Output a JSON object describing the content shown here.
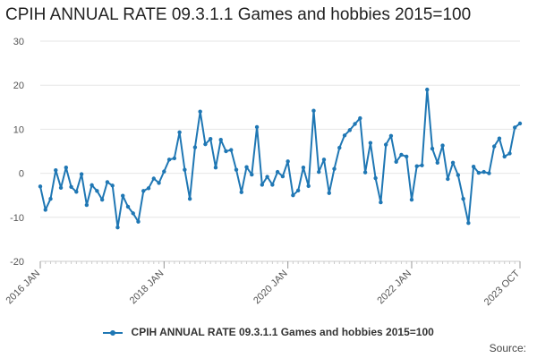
{
  "chart_data": {
    "type": "line",
    "title": "CPIH ANNUAL RATE 09.3.1.1 Games and hobbies 2015=100",
    "xlabel": "",
    "ylabel": "",
    "ylim": [
      -20,
      30
    ],
    "yticks": [
      -20,
      -10,
      0,
      10,
      20,
      30
    ],
    "xticks": [
      "2016 JAN",
      "2018 JAN",
      "2020 JAN",
      "2022 JAN",
      "2023 OCT"
    ],
    "grid": true,
    "legend_position": "bottom",
    "series": [
      {
        "name": "CPIH ANNUAL RATE 09.3.1.1 Games and hobbies 2015=100",
        "color": "#1f77b4",
        "x": [
          "2016 JAN",
          "2016 FEB",
          "2016 MAR",
          "2016 APR",
          "2016 MAY",
          "2016 JUN",
          "2016 JUL",
          "2016 AUG",
          "2016 SEP",
          "2016 OCT",
          "2016 NOV",
          "2016 DEC",
          "2017 JAN",
          "2017 FEB",
          "2017 MAR",
          "2017 APR",
          "2017 MAY",
          "2017 JUN",
          "2017 JUL",
          "2017 AUG",
          "2017 SEP",
          "2017 OCT",
          "2017 NOV",
          "2017 DEC",
          "2018 JAN",
          "2018 FEB",
          "2018 MAR",
          "2018 APR",
          "2018 MAY",
          "2018 JUN",
          "2018 JUL",
          "2018 AUG",
          "2018 SEP",
          "2018 OCT",
          "2018 NOV",
          "2018 DEC",
          "2019 JAN",
          "2019 FEB",
          "2019 MAR",
          "2019 APR",
          "2019 MAY",
          "2019 JUN",
          "2019 JUL",
          "2019 AUG",
          "2019 SEP",
          "2019 OCT",
          "2019 NOV",
          "2019 DEC",
          "2020 JAN",
          "2020 FEB",
          "2020 MAR",
          "2020 APR",
          "2020 MAY",
          "2020 JUN",
          "2020 JUL",
          "2020 AUG",
          "2020 SEP",
          "2020 OCT",
          "2020 NOV",
          "2020 DEC",
          "2021 JAN",
          "2021 FEB",
          "2021 MAR",
          "2021 APR",
          "2021 MAY",
          "2021 JUN",
          "2021 JUL",
          "2021 AUG",
          "2021 SEP",
          "2021 OCT",
          "2021 NOV",
          "2021 DEC",
          "2022 JAN",
          "2022 FEB",
          "2022 MAR",
          "2022 APR",
          "2022 MAY",
          "2022 JUN",
          "2022 JUL",
          "2022 AUG",
          "2022 SEP",
          "2022 OCT",
          "2022 NOV",
          "2022 DEC",
          "2023 JAN",
          "2023 FEB",
          "2023 MAR",
          "2023 APR",
          "2023 MAY",
          "2023 JUN",
          "2023 JUL",
          "2023 AUG",
          "2023 SEP",
          "2023 OCT"
        ],
        "values": [
          -3,
          -8.3,
          -5.8,
          0.7,
          -3.3,
          1.3,
          -3.1,
          -4.2,
          -0.2,
          -7.2,
          -2.7,
          -4,
          -6,
          -2,
          -2.8,
          -12.3,
          -5.1,
          -7.6,
          -9.1,
          -11,
          -4,
          -3.4,
          -1.2,
          -2.2,
          0.4,
          3.1,
          3.4,
          9.3,
          0.8,
          -5.8,
          5.9,
          14,
          6.6,
          7.8,
          1.3,
          7.6,
          5,
          5.3,
          0.8,
          -4.3,
          1.4,
          -0.3,
          10.5,
          -2.6,
          -0.8,
          -2.6,
          0.3,
          -0.7,
          2.7,
          -5,
          -3.9,
          1.3,
          -2.9,
          14.2,
          0.3,
          3.1,
          -4.5,
          1,
          5.8,
          8.6,
          9.8,
          11.2,
          12.5,
          0.2,
          6.9,
          -1.1,
          -6.6,
          6.5,
          8.5,
          2.6,
          4.2,
          3.8,
          -6,
          1.6,
          1.8,
          19,
          5.6,
          2.4,
          6.3,
          -1.3,
          2.4,
          -0.4,
          -5.8,
          -11.3,
          1.5,
          0.1,
          0.3,
          0,
          6.1,
          7.9,
          3.8,
          4.5,
          10.4,
          11.3
        ]
      }
    ]
  },
  "legend": {
    "label": "CPIH ANNUAL RATE 09.3.1.1 Games and hobbies 2015=100"
  },
  "footer": {
    "source_label": "Source:"
  }
}
